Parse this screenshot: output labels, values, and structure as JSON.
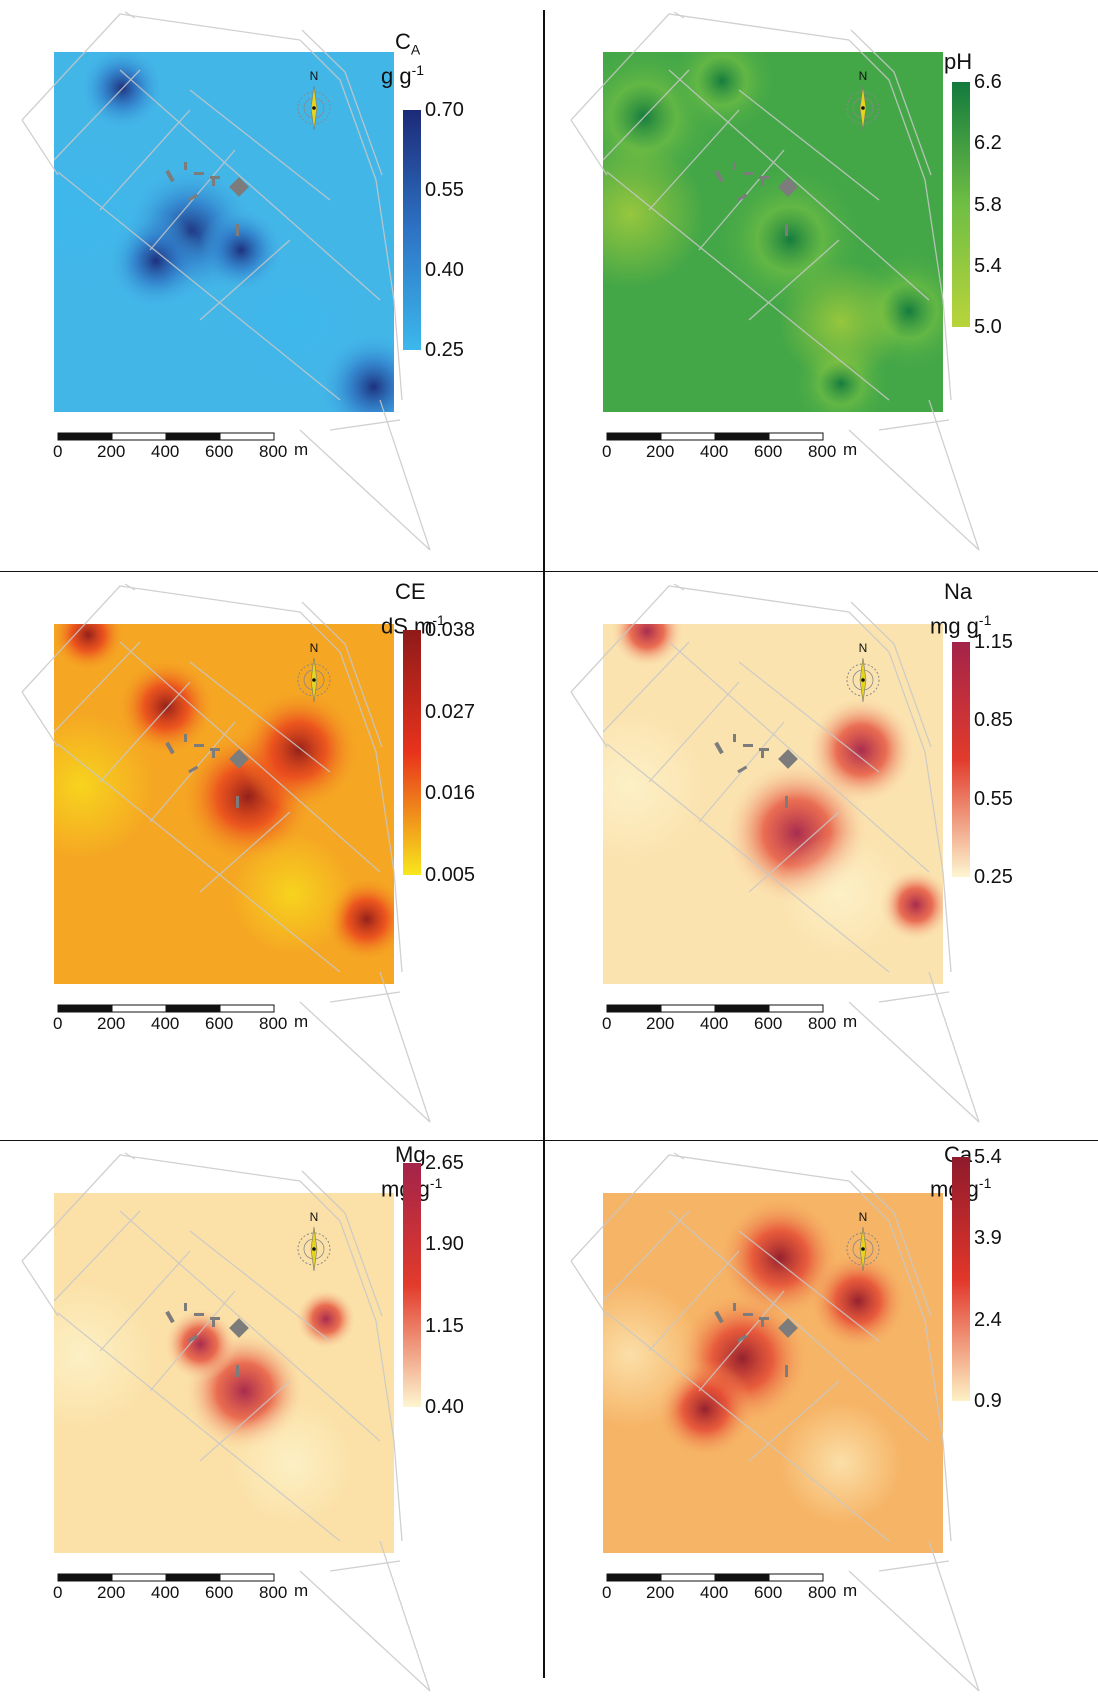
{
  "scale_bar": {
    "labels": [
      "0",
      "200",
      "400",
      "600",
      "800"
    ],
    "unit": "m"
  },
  "compass": {
    "north_label": "N"
  },
  "panels": [
    {
      "id": "ca",
      "title_main": "C",
      "title_sub": "A",
      "unit_main": "g g",
      "unit_sup": "-1",
      "ticks": [
        "0.70",
        "0.55",
        "0.40",
        "0.25"
      ],
      "colors": {
        "low": "#3cb8ec",
        "base": "#43b6e8",
        "high": "#1c2a78",
        "mid": "#2e73c4"
      }
    },
    {
      "id": "ph",
      "title_main": "pH",
      "title_sub": "",
      "unit_main": "",
      "unit_sup": "",
      "ticks": [
        "6.6",
        "6.2",
        "5.8",
        "5.4",
        "5.0"
      ],
      "colors": {
        "low": "#b9d43a",
        "base": "#44a747",
        "high": "#137a3e",
        "mid": "#6fbe44"
      }
    },
    {
      "id": "ce",
      "title_main": "CE",
      "title_sub": "",
      "unit_main": "dS m",
      "unit_sup": "-1",
      "ticks": [
        "0.038",
        "0.027",
        "0.016",
        "0.005"
      ],
      "colors": {
        "low": "#f8e71c",
        "base": "#f5a623",
        "high": "#8e1a1a",
        "mid": "#e8331c"
      }
    },
    {
      "id": "na",
      "title_main": "Na",
      "title_sub": "",
      "unit_main": "mg g",
      "unit_sup": "-1",
      "ticks": [
        "1.15",
        "0.85",
        "0.55",
        "0.25"
      ],
      "colors": {
        "low": "#fdf6d0",
        "base": "#fbe3b0",
        "high": "#a3234a",
        "mid": "#e23b2b"
      }
    },
    {
      "id": "mg",
      "title_main": "Mg",
      "title_sub": "",
      "unit_main": "mg g",
      "unit_sup": "-1",
      "ticks": [
        "2.65",
        "1.90",
        "1.15",
        "0.40"
      ],
      "colors": {
        "low": "#fdf6d0",
        "base": "#fbe1a8",
        "high": "#a3234a",
        "mid": "#e23b2b"
      }
    },
    {
      "id": "ca2",
      "title_main": "Ca",
      "title_sub": "",
      "unit_main": "mg g",
      "unit_sup": "-1",
      "ticks": [
        "5.4",
        "3.9",
        "2.4",
        "0.9"
      ],
      "colors": {
        "low": "#fdf1c4",
        "base": "#f6b466",
        "high": "#8e1a2c",
        "mid": "#e2362a"
      }
    }
  ]
}
